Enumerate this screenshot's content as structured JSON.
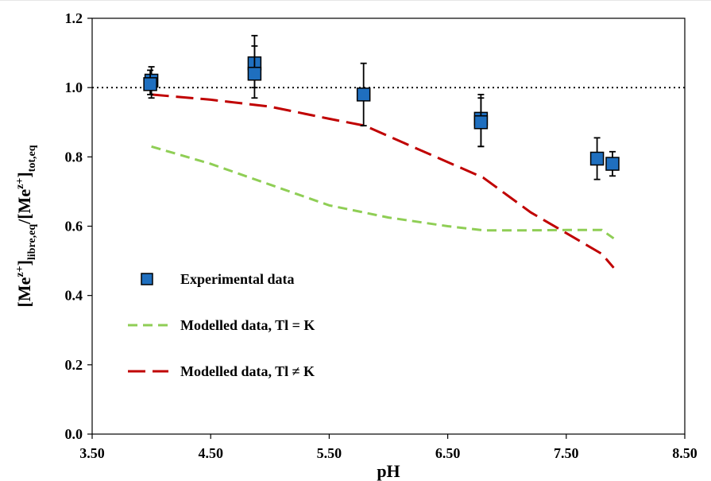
{
  "chart_data": {
    "type": "scatter",
    "xlabel": "pH",
    "ylabel": {
      "parts": [
        {
          "t": "[Me",
          "s": "normal"
        },
        {
          "t": "z+",
          "s": "super"
        },
        {
          "t": "]",
          "s": "normal"
        },
        {
          "t": "libre,eq",
          "s": "sub"
        },
        {
          "t": "/[Me",
          "s": "normal"
        },
        {
          "t": "z+",
          "s": "super"
        },
        {
          "t": "]",
          "s": "normal"
        },
        {
          "t": "tot,eq",
          "s": "sub"
        }
      ]
    },
    "xlim": [
      3.5,
      8.5
    ],
    "ylim": [
      0.0,
      1.2
    ],
    "xticks": [
      "3.50",
      "4.50",
      "5.50",
      "6.50",
      "7.50",
      "8.50"
    ],
    "xtick_values": [
      3.5,
      4.5,
      5.5,
      6.5,
      7.5,
      8.5
    ],
    "yticks": [
      "0.0",
      "0.2",
      "0.4",
      "0.6",
      "0.8",
      "1.0",
      "1.2"
    ],
    "ytick_values": [
      0.0,
      0.2,
      0.4,
      0.6,
      0.8,
      1.0,
      1.2
    ],
    "reference_line": {
      "y": 1.0,
      "style": "dotted",
      "color": "#000000"
    },
    "series": [
      {
        "name": "Experimental data",
        "kind": "markers",
        "color": "#1f6fbf",
        "points": [
          {
            "x": 4.0,
            "y": 1.02,
            "ylow": 0.97,
            "yhigh": 1.06
          },
          {
            "x": 3.99,
            "y": 1.01,
            "ylow": 0.98,
            "yhigh": 1.05
          },
          {
            "x": 4.87,
            "y": 1.07,
            "ylow": 1.0,
            "yhigh": 1.12
          },
          {
            "x": 4.87,
            "y": 1.04,
            "ylow": 0.97,
            "yhigh": 1.15
          },
          {
            "x": 5.79,
            "y": 0.98,
            "ylow": 0.89,
            "yhigh": 1.07
          },
          {
            "x": 6.78,
            "y": 0.91,
            "ylow": 0.83,
            "yhigh": 0.98
          },
          {
            "x": 6.78,
            "y": 0.9,
            "ylow": 0.83,
            "yhigh": 0.97
          },
          {
            "x": 7.76,
            "y": 0.795,
            "ylow": 0.735,
            "yhigh": 0.855
          },
          {
            "x": 7.89,
            "y": 0.78,
            "ylow": 0.745,
            "yhigh": 0.815
          }
        ]
      },
      {
        "name": "Modelled data, Tl = K",
        "kind": "line",
        "color": "#8fce55",
        "dash": "12 7",
        "points": [
          {
            "x": 4.0,
            "y": 0.83
          },
          {
            "x": 4.5,
            "y": 0.78
          },
          {
            "x": 5.0,
            "y": 0.72
          },
          {
            "x": 5.5,
            "y": 0.66
          },
          {
            "x": 6.0,
            "y": 0.625
          },
          {
            "x": 6.5,
            "y": 0.6
          },
          {
            "x": 6.8,
            "y": 0.588
          },
          {
            "x": 7.2,
            "y": 0.588
          },
          {
            "x": 7.5,
            "y": 0.589
          },
          {
            "x": 7.8,
            "y": 0.589
          },
          {
            "x": 7.9,
            "y": 0.565
          }
        ]
      },
      {
        "name": "Modelled data, Tl ≠ K",
        "kind": "line",
        "color": "#c00000",
        "dash": "22 9",
        "points": [
          {
            "x": 4.0,
            "y": 0.98
          },
          {
            "x": 4.5,
            "y": 0.965
          },
          {
            "x": 5.0,
            "y": 0.945
          },
          {
            "x": 5.5,
            "y": 0.91
          },
          {
            "x": 5.8,
            "y": 0.89
          },
          {
            "x": 6.2,
            "y": 0.83
          },
          {
            "x": 6.8,
            "y": 0.74
          },
          {
            "x": 7.2,
            "y": 0.64
          },
          {
            "x": 7.5,
            "y": 0.58
          },
          {
            "x": 7.8,
            "y": 0.52
          },
          {
            "x": 7.9,
            "y": 0.48
          }
        ]
      }
    ],
    "legend": {
      "placement": "bottom-left",
      "entries": [
        "Experimental data",
        "Modelled data, Tl = K",
        "Modelled data, Tl ≠ K"
      ]
    },
    "grid": false
  }
}
